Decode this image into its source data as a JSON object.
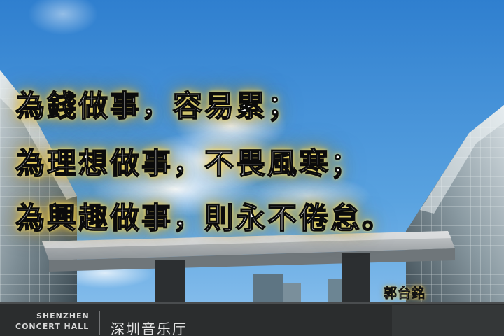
{
  "quote": {
    "line1": "為錢做事，容易累；",
    "line2": "為理想做事，不畏風寒；",
    "line3": "為興趣做事，則永不倦怠。"
  },
  "author": "郭台銘",
  "sign": {
    "en_line1": "SHENZHEN",
    "en_line2": "CONCERT HALL",
    "cn": "深圳音乐厅"
  },
  "colors": {
    "sky_top": "#2f7fcf",
    "sky_bottom": "#8fc3ee",
    "text_glow": "#ffd646",
    "text_fill": "#ffffff",
    "text_outline": "#0b0b0b"
  }
}
